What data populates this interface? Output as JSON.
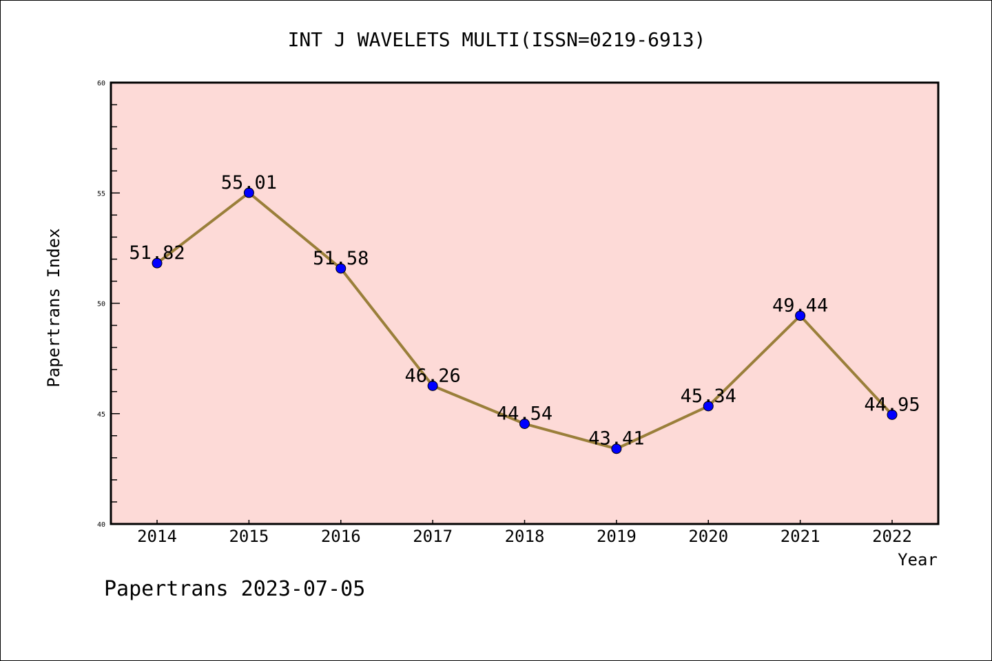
{
  "chart_data": {
    "type": "line",
    "title": "INT J WAVELETS MULTI(ISSN=0219-6913)",
    "xlabel": "Year",
    "ylabel": "Papertrans Index",
    "categories": [
      "2014",
      "2015",
      "2016",
      "2017",
      "2018",
      "2019",
      "2020",
      "2021",
      "2022"
    ],
    "values": [
      51.82,
      55.01,
      51.58,
      46.26,
      44.54,
      43.41,
      45.34,
      49.44,
      44.95
    ],
    "data_labels": [
      "51.82",
      "55.01",
      "51.58",
      "46.26",
      "44.54",
      "43.41",
      "45.34",
      "49.44",
      "44.95"
    ],
    "ylim": [
      40,
      60
    ],
    "yticks": [
      "40",
      "45",
      "50",
      "55",
      "60"
    ],
    "grid": false,
    "footer": "Papertrans 2023-07-05",
    "colors": {
      "plot_bg": "#fddad7",
      "line": "#9a7f3a",
      "marker": "#0000ff"
    }
  }
}
